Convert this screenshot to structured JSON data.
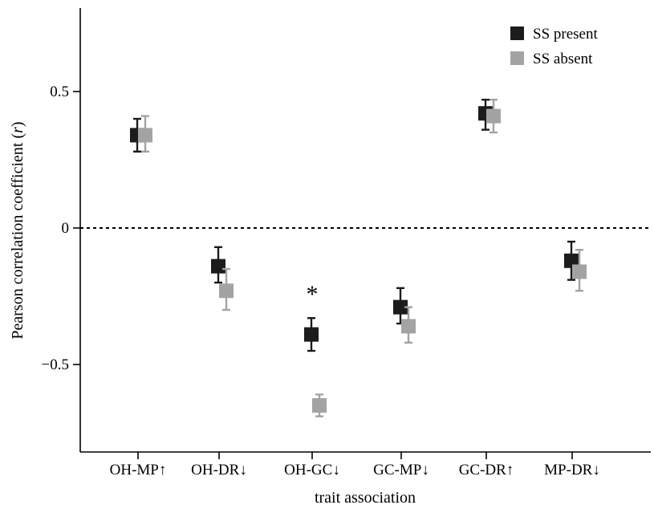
{
  "chart_data": {
    "type": "scatter",
    "title": "",
    "xlabel": "trait association",
    "ylabel": "Pearson correlation coefficient (r)",
    "ylim": [
      -0.8,
      0.8
    ],
    "yticks": [
      {
        "value": 0.5,
        "label": "0.5"
      },
      {
        "value": 0,
        "label": "0"
      },
      {
        "value": -0.5,
        "label": "−0.5"
      }
    ],
    "reference_line": {
      "y": 0,
      "style": "dotted"
    },
    "categories": [
      "OH-MP↑",
      "OH-DR↓",
      "OH-GC↓",
      "GC-MP↓",
      "GC-DR↑",
      "MP-DR↓"
    ],
    "series": [
      {
        "name": "SS present",
        "color": "#1c1c1c",
        "values": [
          0.34,
          -0.14,
          -0.39,
          -0.29,
          0.42,
          -0.12
        ],
        "error_low": [
          0.28,
          -0.2,
          -0.45,
          -0.35,
          0.36,
          -0.19
        ],
        "error_high": [
          0.4,
          -0.07,
          -0.33,
          -0.22,
          0.47,
          -0.05
        ]
      },
      {
        "name": "SS absent",
        "color": "#a3a3a3",
        "values": [
          0.34,
          -0.23,
          -0.65,
          -0.36,
          0.41,
          -0.16
        ],
        "error_low": [
          0.28,
          -0.3,
          -0.69,
          -0.42,
          0.35,
          -0.23
        ],
        "error_high": [
          0.41,
          -0.15,
          -0.61,
          -0.29,
          0.47,
          -0.08
        ]
      }
    ],
    "annotations": [
      {
        "text": "*",
        "category": "OH-GC↓",
        "y": -0.23
      }
    ],
    "legend": {
      "position": "top-right"
    },
    "grid": false
  }
}
